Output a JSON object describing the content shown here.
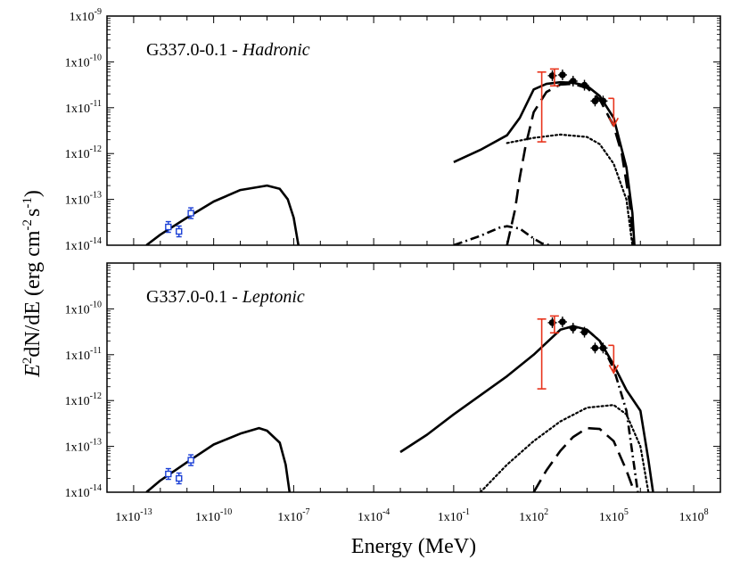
{
  "chart_data": [
    {
      "type": "line",
      "panel": "top",
      "label_main": "G337.0-0.1 - ",
      "label_model": "Hadronic",
      "xscale": "log",
      "yscale": "log",
      "xlim": [
        1e-14,
        1000000000.0
      ],
      "ylim": [
        1e-14,
        1e-09
      ],
      "ylabel": "E2dN/dE (erg cm-2 s-1)",
      "series": [
        {
          "style": "solid",
          "x": [
            3e-13,
            1e-12,
            1e-11,
            1e-10,
            1e-09,
            1e-08,
            3e-08,
            6e-08,
            1e-07,
            1.5e-07
          ],
          "y": [
            1e-14,
            1.7e-14,
            4e-14,
            9e-14,
            1.6e-13,
            2e-13,
            1.7e-13,
            1e-13,
            4e-14,
            1e-14
          ]
        },
        {
          "style": "solid",
          "x": [
            0.1,
            1,
            10,
            30,
            100,
            300,
            1000,
            3000,
            10000,
            30000,
            100000,
            300000,
            500000,
            600000
          ],
          "y": [
            6.5e-13,
            1.2e-12,
            2.5e-12,
            6e-12,
            2.5e-11,
            3.3e-11,
            3.6e-11,
            3.5e-11,
            3e-11,
            1.8e-11,
            6e-12,
            5e-13,
            5e-14,
            1e-14
          ]
        },
        {
          "style": "dashed",
          "x": [
            10,
            20,
            30,
            50,
            100,
            300,
            1000,
            3000,
            10000,
            30000,
            100000,
            200000,
            400000,
            550000
          ],
          "y": [
            1e-14,
            6e-14,
            3e-13,
            1.5e-12,
            8e-12,
            2.2e-11,
            3.2e-11,
            3.3e-11,
            2.7e-11,
            1.5e-11,
            4e-12,
            1e-12,
            8e-14,
            1e-14
          ]
        },
        {
          "style": "dotted",
          "x": [
            10,
            100,
            1000,
            10000,
            30000,
            100000,
            300000,
            500000
          ],
          "y": [
            1.7e-12,
            2.2e-12,
            2.6e-12,
            2.3e-12,
            1.6e-12,
            6e-13,
            1e-13,
            1e-14
          ]
        },
        {
          "style": "dashdot",
          "x": [
            0.1,
            1,
            5,
            10,
            30,
            100,
            200,
            400
          ],
          "y": [
            1e-14,
            1.6e-14,
            2.4e-14,
            2.6e-14,
            2.3e-14,
            1.4e-14,
            1.1e-14,
            1e-14
          ]
        }
      ],
      "data_points": [
        {
          "set": "blue-xray",
          "x": [
            2e-12,
            5e-12,
            1.4e-11
          ],
          "y": [
            2.5e-14,
            2e-14,
            5e-14
          ]
        },
        {
          "set": "black-fermi",
          "x": [
            500,
            1200,
            3000,
            8000,
            20000,
            40000
          ],
          "y": [
            5e-11,
            5.2e-11,
            3.8e-11,
            3.1e-11,
            1.4e-11,
            1.4e-11
          ]
        },
        {
          "set": "red-xray-band",
          "x": [
            200,
            600
          ],
          "y": [
            3e-11,
            3.5e-11
          ],
          "ylo": [
            1.8e-12,
            3e-11
          ],
          "yhi": [
            6e-11,
            7e-11
          ]
        },
        {
          "set": "red-upper-limit",
          "x": [
            100000
          ],
          "y": [
            1.6e-11
          ]
        }
      ]
    },
    {
      "type": "line",
      "panel": "bottom",
      "label_main": "G337.0-0.1 - ",
      "label_model": "Leptonic",
      "xscale": "log",
      "yscale": "log",
      "xlim": [
        1e-14,
        1000000000.0
      ],
      "ylim": [
        1e-14,
        1e-09
      ],
      "series": [
        {
          "style": "solid",
          "x": [
            3e-13,
            1e-12,
            1e-11,
            1e-10,
            1e-09,
            5e-09,
            1e-08,
            3e-08,
            5e-08,
            7e-08
          ],
          "y": [
            1e-14,
            1.8e-14,
            4.5e-14,
            1.1e-13,
            1.9e-13,
            2.5e-13,
            2.2e-13,
            1.2e-13,
            4e-14,
            1e-14
          ]
        },
        {
          "style": "solid",
          "x": [
            0.001,
            0.01,
            0.1,
            1,
            10,
            100,
            1000,
            3000,
            10000,
            30000,
            100000,
            300000,
            1000000,
            2000000,
            3000000
          ],
          "y": [
            7.5e-14,
            1.8e-13,
            5e-13,
            1.3e-12,
            3.4e-12,
            1e-11,
            3.5e-11,
            4.2e-11,
            3.5e-11,
            2e-11,
            6e-12,
            1.7e-12,
            6e-13,
            5e-14,
            1e-14
          ]
        },
        {
          "style": "dashdot",
          "x": [
            10000,
            30000,
            100000,
            300000,
            800000
          ],
          "y": [
            3.5e-11,
            2e-11,
            5e-12,
            6e-13,
            1e-14
          ]
        },
        {
          "style": "dotted",
          "x": [
            1,
            10,
            100,
            1000,
            10000,
            100000,
            300000,
            1000000,
            2000000
          ],
          "y": [
            1e-14,
            4e-14,
            1.3e-13,
            3.5e-13,
            7e-13,
            8e-13,
            5e-13,
            1e-13,
            1e-14
          ]
        },
        {
          "style": "dashed",
          "x": [
            100,
            300,
            1000,
            3000,
            10000,
            30000,
            100000,
            300000,
            600000
          ],
          "y": [
            1e-14,
            3e-14,
            8e-14,
            1.6e-13,
            2.5e-13,
            2.4e-13,
            1.3e-13,
            3e-14,
            1e-14
          ]
        }
      ],
      "data_points": [
        {
          "set": "blue-xray",
          "x": [
            2e-12,
            5e-12,
            1.4e-11
          ],
          "y": [
            2.5e-14,
            2e-14,
            5e-14
          ]
        },
        {
          "set": "black-fermi",
          "x": [
            500,
            1200,
            3000,
            8000,
            20000,
            40000
          ],
          "y": [
            5e-11,
            5.2e-11,
            3.8e-11,
            3.1e-11,
            1.4e-11,
            1.4e-11
          ]
        },
        {
          "set": "red-xray-band",
          "x": [
            200,
            600
          ],
          "y": [
            3e-11,
            3.5e-11
          ],
          "ylo": [
            1.8e-12,
            3e-11
          ],
          "yhi": [
            6e-11,
            7e-11
          ]
        },
        {
          "set": "red-upper-limit",
          "x": [
            100000
          ],
          "y": [
            1.6e-11
          ]
        }
      ]
    }
  ],
  "xlabel": "Energy (MeV)",
  "yaxis_label": {
    "pre": "E",
    "sup1": "2",
    "mid": "dN/dE (erg cm",
    "sup2": "-2",
    "mid2": "s",
    "sup3": "-1",
    "post": ")"
  },
  "x_ticks": [
    {
      "v": 1e-13,
      "base": "1x10",
      "exp": "-13"
    },
    {
      "v": 1e-10,
      "base": "1x10",
      "exp": "-10"
    },
    {
      "v": 1e-07,
      "base": "1x10",
      "exp": "-7"
    },
    {
      "v": 0.0001,
      "base": "1x10",
      "exp": "-4"
    },
    {
      "v": 0.1,
      "base": "1x10",
      "exp": "-1"
    },
    {
      "v": 100,
      "base": "1x10",
      "exp": "2"
    },
    {
      "v": 100000,
      "base": "1x10",
      "exp": "5"
    },
    {
      "v": 100000000.0,
      "base": "1x10",
      "exp": "8"
    }
  ],
  "y_ticks_top": [
    {
      "v": 1e-09,
      "base": "1x10",
      "exp": "-9"
    },
    {
      "v": 1e-10,
      "base": "1x10",
      "exp": "-10"
    },
    {
      "v": 1e-11,
      "base": "1x10",
      "exp": "-11"
    },
    {
      "v": 1e-12,
      "base": "1x10",
      "exp": "-12"
    },
    {
      "v": 1e-13,
      "base": "1x10",
      "exp": "-13"
    },
    {
      "v": 1e-14,
      "base": "1x10",
      "exp": "-14"
    }
  ],
  "y_ticks_bottom": [
    {
      "v": 1e-10,
      "base": "1x10",
      "exp": "-10"
    },
    {
      "v": 1e-11,
      "base": "1x10",
      "exp": "-11"
    },
    {
      "v": 1e-12,
      "base": "1x10",
      "exp": "-12"
    },
    {
      "v": 1e-13,
      "base": "1x10",
      "exp": "-13"
    },
    {
      "v": 1e-14,
      "base": "1x10",
      "exp": "-14"
    }
  ],
  "colors": {
    "axis": "#000000",
    "model": "#000000",
    "red": "#e8341c",
    "blue": "#1a3fd6"
  }
}
